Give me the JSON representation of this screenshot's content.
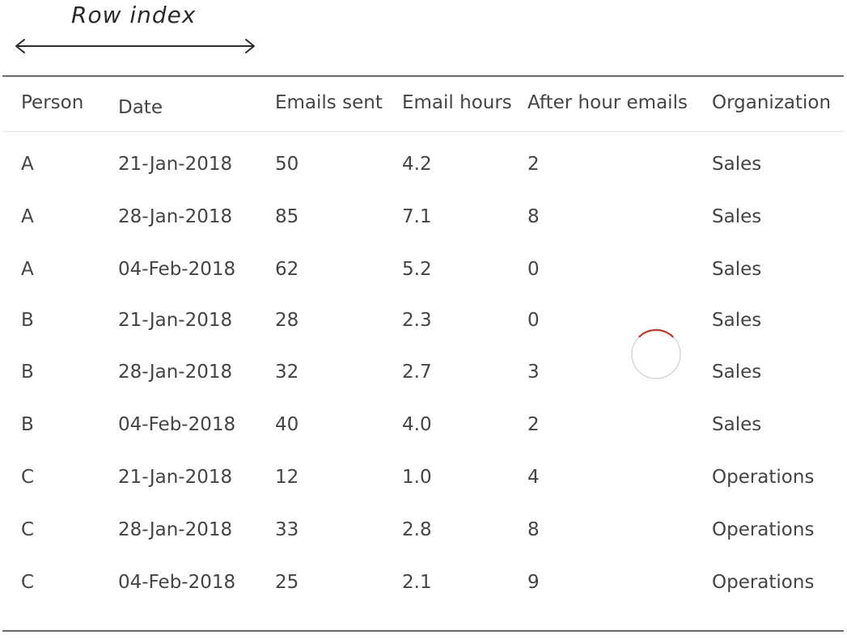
{
  "annotation": {
    "label": "Row index"
  },
  "table": {
    "headers": [
      "Person",
      "Date",
      "Emails sent",
      "Email hours",
      "After hour emails",
      "Organization"
    ],
    "rows": [
      [
        "A",
        "21-Jan-2018",
        "50",
        "4.2",
        "2",
        "Sales"
      ],
      [
        "A",
        "28-Jan-2018",
        "85",
        "7.1",
        "8",
        "Sales"
      ],
      [
        "A",
        "04-Feb-2018",
        "62",
        "5.2",
        "0",
        "Sales"
      ],
      [
        "B",
        "21-Jan-2018",
        "28",
        "2.3",
        "0",
        "Sales"
      ],
      [
        "B",
        "28-Jan-2018",
        "32",
        "2.7",
        "3",
        "Sales"
      ],
      [
        "B",
        "04-Feb-2018",
        "40",
        "4.0",
        "2",
        "Sales"
      ],
      [
        "C",
        "21-Jan-2018",
        "12",
        "1.0",
        "4",
        "Operations"
      ],
      [
        "C",
        "28-Jan-2018",
        "33",
        "2.8",
        "8",
        "Operations"
      ],
      [
        "C",
        "04-Feb-2018",
        "25",
        "2.1",
        "9",
        "Operations"
      ]
    ]
  },
  "colors": {
    "text": "#444444",
    "rule": "#6b6b6b",
    "spinner_track": "#d0d0d0",
    "spinner_accent": "#c0392b"
  }
}
